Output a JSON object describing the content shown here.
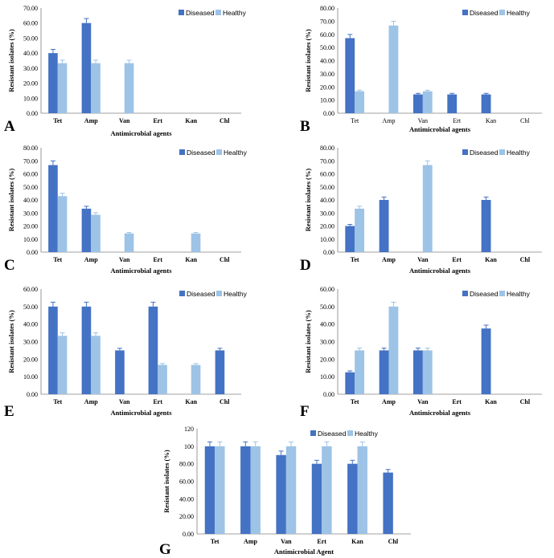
{
  "colors": {
    "diseased": "#4472C4",
    "healthy": "#9DC3E6",
    "axis": "#808080",
    "errorbar": "#4472C4"
  },
  "chart_data": [
    {
      "panel": "A",
      "type": "bar",
      "categories": [
        "Tet",
        "Amp",
        "Van",
        "Ert",
        "Kan",
        "Chl"
      ],
      "series": [
        {
          "name": "Diseased",
          "values": [
            40.0,
            60.0,
            0,
            0,
            0,
            0
          ]
        },
        {
          "name": "Healthy",
          "values": [
            33.3,
            33.3,
            33.3,
            0,
            0,
            0
          ]
        }
      ],
      "errors": [
        [
          2.5,
          3.0,
          0,
          0,
          0,
          0
        ],
        [
          2.0,
          2.0,
          2.0,
          0,
          0,
          0
        ]
      ],
      "ylim": [
        0,
        70
      ],
      "ystep": 10,
      "ytick_decimals": 2,
      "yticks": [
        "0.00",
        "10.00",
        "20.00",
        "30.00",
        "40.00",
        "50.00",
        "60.00",
        "70.00"
      ],
      "ylabel": "Resistant isolates (%)",
      "xlabel": "Antimicrobial agents",
      "xtick_bold": true,
      "legend": "top-right"
    },
    {
      "panel": "B",
      "type": "bar",
      "categories": [
        "Tet",
        "Amp",
        "Van",
        "Ert",
        "Kan",
        "Chl"
      ],
      "series": [
        {
          "name": "Diseased",
          "values": [
            57.1,
            0,
            14.3,
            14.3,
            14.3,
            0
          ]
        },
        {
          "name": "Healthy",
          "values": [
            16.7,
            66.7,
            16.7,
            0,
            0,
            0
          ]
        }
      ],
      "errors": [
        [
          2.8,
          0,
          0.8,
          0.8,
          0.8,
          0
        ],
        [
          0.8,
          3.2,
          0.8,
          0,
          0,
          0
        ]
      ],
      "ylim": [
        0,
        80
      ],
      "ystep": 10,
      "ytick_decimals": 2,
      "yticks": [
        "0.00",
        "10.00",
        "20.00",
        "30.00",
        "40.00",
        "50.00",
        "60.00",
        "70.00",
        "80.00"
      ],
      "ylabel": "Resistant isolates (%)",
      "xlabel": "Antimicrobial agents",
      "xtick_bold": false,
      "legend": "top-right"
    },
    {
      "panel": "C",
      "type": "bar",
      "categories": [
        "Tet",
        "Amp",
        "Van",
        "Ert",
        "Kan",
        "Chl"
      ],
      "series": [
        {
          "name": "Diseased",
          "values": [
            66.7,
            33.3,
            0,
            0,
            0,
            0
          ]
        },
        {
          "name": "Healthy",
          "values": [
            42.9,
            28.6,
            14.3,
            0,
            14.3,
            0
          ]
        }
      ],
      "errors": [
        [
          3.2,
          1.8,
          0,
          0,
          0,
          0
        ],
        [
          2.2,
          1.6,
          0.8,
          0,
          0.8,
          0
        ]
      ],
      "ylim": [
        0,
        80
      ],
      "ystep": 10,
      "ytick_decimals": 2,
      "yticks": [
        "0.00",
        "10.00",
        "20.00",
        "30.00",
        "40.00",
        "50.00",
        "60.00",
        "70.00",
        "80.00"
      ],
      "ylabel": "Resistant isolates (%)",
      "xlabel": "Antimicrobial agents",
      "xtick_bold": true,
      "legend": "top-right"
    },
    {
      "panel": "D",
      "type": "bar",
      "categories": [
        "Tet",
        "Amp",
        "Van",
        "Ert",
        "Kan",
        "Chl"
      ],
      "series": [
        {
          "name": "Diseased",
          "values": [
            20.0,
            40.0,
            0,
            0,
            40.0,
            0
          ]
        },
        {
          "name": "Healthy",
          "values": [
            33.3,
            0,
            66.7,
            0,
            0,
            0
          ]
        }
      ],
      "errors": [
        [
          1.2,
          2.2,
          0,
          0,
          2.2,
          0
        ],
        [
          1.8,
          0,
          3.2,
          0,
          0,
          0
        ]
      ],
      "ylim": [
        0,
        80
      ],
      "ystep": 10,
      "ytick_decimals": 2,
      "yticks": [
        "0.00",
        "10.00",
        "20.00",
        "30.00",
        "40.00",
        "50.00",
        "60.00",
        "70.00",
        "80.00"
      ],
      "ylabel": "Resistant isolates (%)",
      "xlabel": "Antimicrobial agents",
      "xtick_bold": true,
      "legend": "top-right"
    },
    {
      "panel": "E",
      "type": "bar",
      "categories": [
        "Tet",
        "Amp",
        "Van",
        "Ert",
        "Kan",
        "Chl"
      ],
      "series": [
        {
          "name": "Diseased",
          "values": [
            50.0,
            50.0,
            25.0,
            50.0,
            0,
            25.0
          ]
        },
        {
          "name": "Healthy",
          "values": [
            33.3,
            33.3,
            0,
            16.7,
            16.7,
            0
          ]
        }
      ],
      "errors": [
        [
          2.5,
          2.5,
          1.2,
          2.5,
          0,
          1.2
        ],
        [
          1.7,
          1.7,
          0,
          0.8,
          0.8,
          0
        ]
      ],
      "ylim": [
        0,
        60
      ],
      "ystep": 10,
      "ytick_decimals": 2,
      "yticks": [
        "0.00",
        "10.00",
        "20.00",
        "30.00",
        "40.00",
        "50.00",
        "60.00"
      ],
      "ylabel": "Resistant isolates (%)",
      "xlabel": "Antimicrobial agents",
      "xtick_bold": true,
      "legend": "top-right"
    },
    {
      "panel": "F",
      "type": "bar",
      "categories": [
        "Tet",
        "Amp",
        "Van",
        "Ert",
        "Kan",
        "Chl"
      ],
      "series": [
        {
          "name": "Diseased",
          "values": [
            12.5,
            25.0,
            25.0,
            0,
            37.5,
            0
          ]
        },
        {
          "name": "Healthy",
          "values": [
            25.0,
            50.0,
            25.0,
            0,
            0,
            0
          ]
        }
      ],
      "errors": [
        [
          0.8,
          1.3,
          1.3,
          0,
          1.9,
          0
        ],
        [
          1.3,
          2.5,
          1.3,
          0,
          0,
          0
        ]
      ],
      "ylim": [
        0,
        60
      ],
      "ystep": 10,
      "ytick_decimals": 2,
      "yticks": [
        "0.00",
        "10.00",
        "20.00",
        "30.00",
        "40.00",
        "50.00",
        "60.00"
      ],
      "ylabel": "Resistant isolates (%)",
      "xlabel": "Antimicrobial agents",
      "xtick_bold": true,
      "legend": "top-right"
    },
    {
      "panel": "G",
      "type": "bar",
      "categories": [
        "Tet",
        "Amp",
        "Van",
        "Ert",
        "Kan",
        "Chl"
      ],
      "series": [
        {
          "name": "Diseased",
          "values": [
            100,
            100,
            90,
            80,
            80,
            70
          ]
        },
        {
          "name": "Healthy",
          "values": [
            100,
            100,
            100,
            100,
            100,
            0
          ]
        }
      ],
      "errors": [
        [
          5,
          5,
          4.5,
          4,
          4,
          3.5
        ],
        [
          5,
          5,
          5,
          5,
          5,
          0
        ]
      ],
      "ylim": [
        0,
        120
      ],
      "ystep": 20,
      "ytick_decimals": 2,
      "yticks": [
        "0.00",
        "20.00",
        "40.00",
        "60.00",
        "80.00",
        "100",
        "120"
      ],
      "ylabel": "Resistant isolates (%)",
      "xlabel": "Antimicrobial Agent",
      "xtick_bold": true,
      "legend": "top-center"
    }
  ]
}
